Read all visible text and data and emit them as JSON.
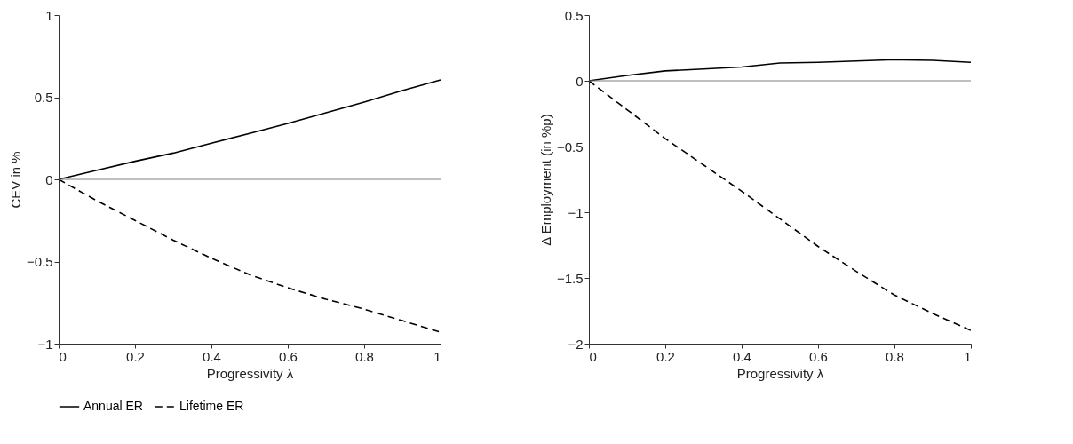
{
  "chart_data": [
    {
      "type": "line",
      "xlabel": "Progressivity    λ",
      "ylabel": "CEV in %",
      "x": [
        0,
        0.1,
        0.2,
        0.3,
        0.4,
        0.5,
        0.6,
        0.7,
        0.8,
        0.9,
        1
      ],
      "xlim": [
        0,
        1
      ],
      "xticks": [
        0,
        0.2,
        0.4,
        0.6,
        0.8,
        1
      ],
      "ylim": [
        -1,
        1
      ],
      "yticks": [
        -1,
        -0.5,
        0,
        0.5,
        1
      ],
      "grid": false,
      "legend": "bottom",
      "series": [
        {
          "name": "Annual ER",
          "color": "#000000",
          "line_style": "solid",
          "values": [
            0,
            0.055,
            0.11,
            0.16,
            0.22,
            0.28,
            0.34,
            0.405,
            0.47,
            0.54,
            0.605
          ]
        },
        {
          "name": "Lifetime ER",
          "color": "#000000",
          "line_style": "dashed",
          "values": [
            0,
            -0.13,
            -0.25,
            -0.37,
            -0.48,
            -0.58,
            -0.66,
            -0.73,
            -0.79,
            -0.86,
            -0.93
          ]
        }
      ],
      "ref_lines": [
        {
          "axis": "y",
          "value": 0,
          "color": "#808080"
        }
      ]
    },
    {
      "type": "line",
      "xlabel": "Progressivity    λ",
      "ylabel": "Δ Employment (in %p)",
      "x": [
        0,
        0.1,
        0.2,
        0.3,
        0.4,
        0.5,
        0.6,
        0.7,
        0.8,
        0.9,
        1
      ],
      "xlim": [
        0,
        1
      ],
      "xticks": [
        0,
        0.2,
        0.4,
        0.6,
        0.8,
        1
      ],
      "ylim": [
        -2,
        0.5
      ],
      "yticks": [
        -2,
        -1.5,
        -1,
        -0.5,
        0,
        0.5
      ],
      "grid": false,
      "legend": "bottom",
      "series": [
        {
          "name": "Annual ER",
          "color": "#000000",
          "line_style": "solid",
          "values": [
            0,
            0.04,
            0.075,
            0.09,
            0.105,
            0.135,
            0.14,
            0.15,
            0.16,
            0.155,
            0.14
          ]
        },
        {
          "name": "Lifetime ER",
          "color": "#000000",
          "line_style": "dashed",
          "values": [
            0,
            -0.22,
            -0.44,
            -0.64,
            -0.84,
            -1.05,
            -1.26,
            -1.45,
            -1.63,
            -1.77,
            -1.9
          ]
        }
      ],
      "ref_lines": [
        {
          "axis": "y",
          "value": 0,
          "color": "#808080"
        }
      ]
    }
  ]
}
